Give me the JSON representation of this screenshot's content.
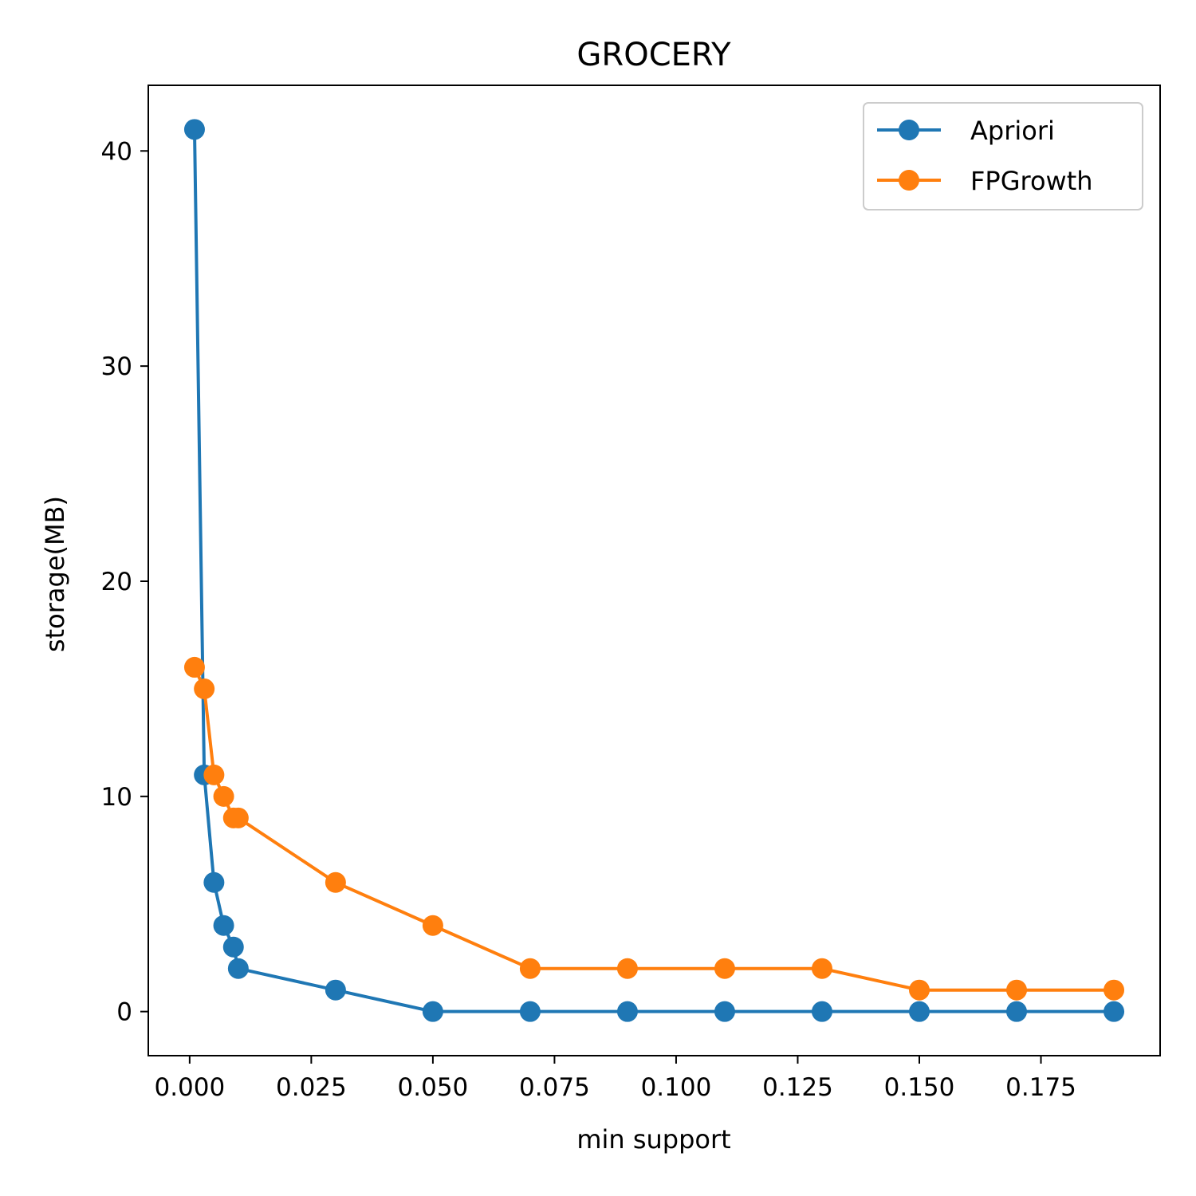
{
  "chart_data": {
    "type": "line",
    "title": "GROCERY",
    "xlabel": "min support",
    "ylabel": "storage(MB)",
    "xlim": [
      -0.0085,
      0.1995
    ],
    "ylim": [
      -2.05,
      43.05
    ],
    "xticks": [
      0.0,
      0.025,
      0.05,
      0.075,
      0.1,
      0.125,
      0.15,
      0.175
    ],
    "xtick_labels": [
      "0.000",
      "0.025",
      "0.050",
      "0.075",
      "0.100",
      "0.125",
      "0.150",
      "0.175"
    ],
    "yticks": [
      0,
      10,
      20,
      30,
      40
    ],
    "ytick_labels": [
      "0",
      "10",
      "20",
      "30",
      "40"
    ],
    "grid": false,
    "legend_position": "top-right",
    "series": [
      {
        "name": "Apriori",
        "color": "#1f77b4",
        "x": [
          0.001,
          0.003,
          0.005,
          0.007,
          0.009,
          0.01,
          0.03,
          0.05,
          0.07,
          0.09,
          0.11,
          0.13,
          0.15,
          0.17,
          0.19
        ],
        "y": [
          41,
          11,
          6,
          4,
          3,
          2,
          1,
          0,
          0,
          0,
          0,
          0,
          0,
          0,
          0
        ]
      },
      {
        "name": "FPGrowth",
        "color": "#ff7f0e",
        "x": [
          0.001,
          0.003,
          0.005,
          0.007,
          0.009,
          0.01,
          0.03,
          0.05,
          0.07,
          0.09,
          0.11,
          0.13,
          0.15,
          0.17,
          0.19
        ],
        "y": [
          16,
          15,
          11,
          10,
          9,
          9,
          6,
          4,
          2,
          2,
          2,
          2,
          1,
          1,
          1
        ]
      }
    ]
  }
}
